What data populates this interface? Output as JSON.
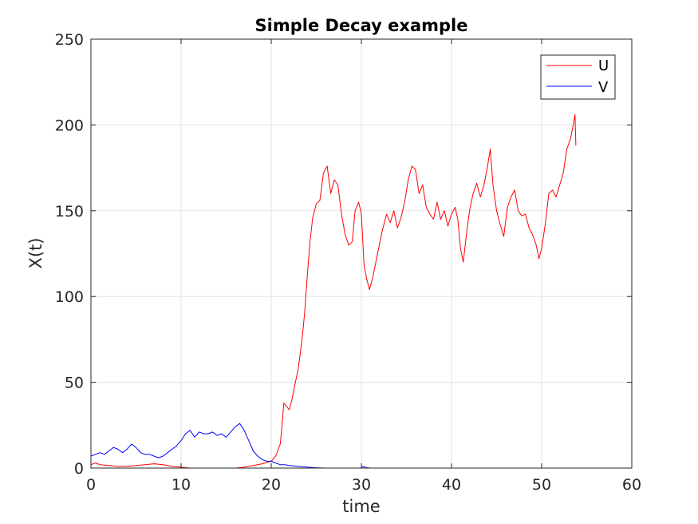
{
  "chart_data": {
    "type": "line",
    "title": "Simple Decay example",
    "xlabel": "time",
    "ylabel": "X(t)",
    "xlim": [
      0,
      60
    ],
    "ylim": [
      0,
      250
    ],
    "xticks": [
      "0",
      "10",
      "20",
      "30",
      "40",
      "50",
      "60"
    ],
    "yticks": [
      "0",
      "50",
      "100",
      "150",
      "200",
      "250"
    ],
    "grid": true,
    "legend_position": "top-right",
    "series": [
      {
        "name": "U",
        "color": "#ff0000",
        "points": [
          [
            0,
            2
          ],
          [
            0.5,
            3
          ],
          [
            1,
            2
          ],
          [
            2,
            1.5
          ],
          [
            3,
            1
          ],
          [
            4,
            1
          ],
          [
            5,
            1.5
          ],
          [
            6,
            2
          ],
          [
            7,
            2.5
          ],
          [
            8,
            2
          ],
          [
            9,
            1
          ],
          [
            10,
            0.5
          ],
          [
            11,
            0
          ],
          [
            12,
            0
          ],
          [
            13,
            0
          ],
          [
            14,
            0
          ],
          [
            15,
            0
          ],
          [
            16,
            0
          ],
          [
            17,
            0.5
          ],
          [
            18,
            1.5
          ],
          [
            19,
            2.5
          ],
          [
            20,
            4
          ],
          [
            20.5,
            7
          ],
          [
            21,
            14
          ],
          [
            21.2,
            25
          ],
          [
            21.4,
            38
          ],
          [
            21.7,
            36
          ],
          [
            22,
            34
          ],
          [
            22.3,
            40
          ],
          [
            22.6,
            48
          ],
          [
            23,
            58
          ],
          [
            23.4,
            74
          ],
          [
            23.7,
            90
          ],
          [
            24,
            112
          ],
          [
            24.3,
            132
          ],
          [
            24.6,
            146
          ],
          [
            25,
            154
          ],
          [
            25.4,
            156
          ],
          [
            25.8,
            172
          ],
          [
            26.2,
            176
          ],
          [
            26.6,
            160
          ],
          [
            27,
            168
          ],
          [
            27.4,
            165
          ],
          [
            27.8,
            148
          ],
          [
            28.2,
            136
          ],
          [
            28.6,
            130
          ],
          [
            29,
            132
          ],
          [
            29.3,
            150
          ],
          [
            29.7,
            155
          ],
          [
            30,
            148
          ],
          [
            30.3,
            118
          ],
          [
            30.6,
            110
          ],
          [
            30.9,
            104
          ],
          [
            31.3,
            112
          ],
          [
            31.8,
            125
          ],
          [
            32.3,
            138
          ],
          [
            32.8,
            148
          ],
          [
            33.2,
            143
          ],
          [
            33.6,
            150
          ],
          [
            34,
            140
          ],
          [
            34.4,
            146
          ],
          [
            34.8,
            155
          ],
          [
            35.2,
            168
          ],
          [
            35.6,
            176
          ],
          [
            36,
            174
          ],
          [
            36.4,
            160
          ],
          [
            36.8,
            165
          ],
          [
            37.2,
            152
          ],
          [
            37.6,
            148
          ],
          [
            38,
            145
          ],
          [
            38.4,
            155
          ],
          [
            38.8,
            145
          ],
          [
            39.2,
            150
          ],
          [
            39.6,
            141
          ],
          [
            40,
            148
          ],
          [
            40.4,
            152
          ],
          [
            40.7,
            145
          ],
          [
            41,
            128
          ],
          [
            41.3,
            120
          ],
          [
            41.7,
            138
          ],
          [
            42,
            150
          ],
          [
            42.4,
            160
          ],
          [
            42.8,
            166
          ],
          [
            43.2,
            158
          ],
          [
            43.6,
            165
          ],
          [
            44,
            176
          ],
          [
            44.3,
            186
          ],
          [
            44.6,
            165
          ],
          [
            45,
            150
          ],
          [
            45.4,
            142
          ],
          [
            45.8,
            135
          ],
          [
            46.2,
            152
          ],
          [
            46.6,
            158
          ],
          [
            47,
            162
          ],
          [
            47.4,
            150
          ],
          [
            47.8,
            147
          ],
          [
            48.2,
            148
          ],
          [
            48.6,
            140
          ],
          [
            49,
            136
          ],
          [
            49.4,
            130
          ],
          [
            49.7,
            122
          ],
          [
            50,
            128
          ],
          [
            50.4,
            142
          ],
          [
            50.8,
            160
          ],
          [
            51.2,
            162
          ],
          [
            51.6,
            158
          ],
          [
            52,
            165
          ],
          [
            52.4,
            172
          ],
          [
            52.8,
            186
          ],
          [
            53.2,
            192
          ],
          [
            53.5,
            200
          ],
          [
            53.7,
            206
          ],
          [
            53.8,
            188
          ]
        ]
      },
      {
        "name": "V",
        "color": "#0000ff",
        "points": [
          [
            0,
            7
          ],
          [
            0.5,
            8
          ],
          [
            1,
            9
          ],
          [
            1.5,
            8
          ],
          [
            2,
            10
          ],
          [
            2.5,
            12
          ],
          [
            3,
            11
          ],
          [
            3.5,
            9
          ],
          [
            4,
            11
          ],
          [
            4.5,
            14
          ],
          [
            5,
            12
          ],
          [
            5.5,
            9
          ],
          [
            6,
            8
          ],
          [
            6.5,
            8
          ],
          [
            7,
            7
          ],
          [
            7.5,
            6
          ],
          [
            8,
            7
          ],
          [
            8.5,
            9
          ],
          [
            9,
            11
          ],
          [
            9.5,
            13
          ],
          [
            10,
            16
          ],
          [
            10.5,
            20
          ],
          [
            11,
            22
          ],
          [
            11.5,
            18
          ],
          [
            12,
            21
          ],
          [
            12.5,
            20
          ],
          [
            13,
            20
          ],
          [
            13.5,
            21
          ],
          [
            14,
            19
          ],
          [
            14.5,
            20
          ],
          [
            15,
            18
          ],
          [
            15.5,
            21
          ],
          [
            16,
            24
          ],
          [
            16.5,
            26
          ],
          [
            17,
            22
          ],
          [
            17.5,
            16
          ],
          [
            18,
            10
          ],
          [
            18.5,
            7
          ],
          [
            19,
            5
          ],
          [
            19.5,
            4
          ],
          [
            20,
            4
          ],
          [
            20.5,
            3
          ],
          [
            21,
            2
          ],
          [
            21.5,
            2
          ],
          [
            22,
            1.5
          ],
          [
            23,
            1
          ],
          [
            24,
            0.5
          ],
          [
            25,
            0.2
          ],
          [
            26,
            0
          ],
          [
            30,
            0
          ],
          [
            30.2,
            1
          ],
          [
            30.5,
            0.3
          ],
          [
            31,
            0
          ],
          [
            40,
            0
          ],
          [
            50,
            0
          ],
          [
            53.8,
            0
          ]
        ]
      }
    ]
  }
}
